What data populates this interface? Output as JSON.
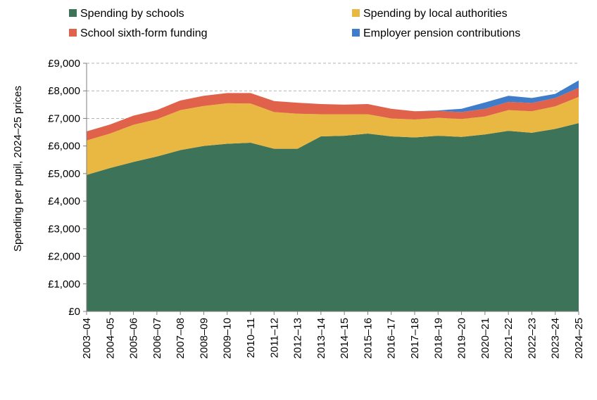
{
  "chart_data": {
    "type": "area",
    "stacked": true,
    "title": "",
    "xlabel": "",
    "ylabel": "Spending per pupil, 2024–25 prices",
    "ylim": [
      0,
      9000
    ],
    "yticks": [
      0,
      1000,
      2000,
      3000,
      4000,
      5000,
      6000,
      7000,
      8000,
      9000
    ],
    "ytick_labels": [
      "£0",
      "£1,000",
      "£2,000",
      "£3,000",
      "£4,000",
      "£5,000",
      "£6,000",
      "£7,000",
      "£8,000",
      "£9,000"
    ],
    "grid": "horizontal dashed",
    "legend_position": "top",
    "categories": [
      "2003–04",
      "2004–05",
      "2005–06",
      "2006–07",
      "2007–08",
      "2008–09",
      "2009–10",
      "2010–11",
      "2011–12",
      "2012–13",
      "2013–14",
      "2014–15",
      "2015–16",
      "2016–17",
      "2017–18",
      "2018–19",
      "2019–20",
      "2020–21",
      "2021–22",
      "2022–23",
      "2023–24",
      "2024–25"
    ],
    "series": [
      {
        "name": "Spending by schools",
        "color": "#3d7358",
        "values": [
          4950,
          5200,
          5420,
          5620,
          5850,
          6000,
          6080,
          6120,
          5900,
          5900,
          6350,
          6370,
          6450,
          6350,
          6310,
          6370,
          6330,
          6420,
          6550,
          6480,
          6620,
          6830
        ]
      },
      {
        "name": "Spending by local authorities",
        "color": "#e9b842",
        "values": [
          1250,
          1250,
          1350,
          1350,
          1450,
          1450,
          1470,
          1420,
          1330,
          1270,
          800,
          780,
          700,
          650,
          650,
          650,
          650,
          650,
          750,
          780,
          820,
          950
        ]
      },
      {
        "name": "School sixth-form funding",
        "color": "#e0624a",
        "values": [
          330,
          330,
          330,
          330,
          350,
          370,
          370,
          380,
          400,
          400,
          370,
          350,
          370,
          350,
          300,
          250,
          250,
          280,
          300,
          300,
          300,
          330
        ]
      },
      {
        "name": "Employer pension contributions",
        "color": "#3f7dca",
        "values": [
          0,
          0,
          0,
          0,
          0,
          0,
          0,
          0,
          0,
          0,
          0,
          0,
          0,
          0,
          0,
          20,
          120,
          230,
          220,
          180,
          150,
          270
        ]
      }
    ]
  }
}
